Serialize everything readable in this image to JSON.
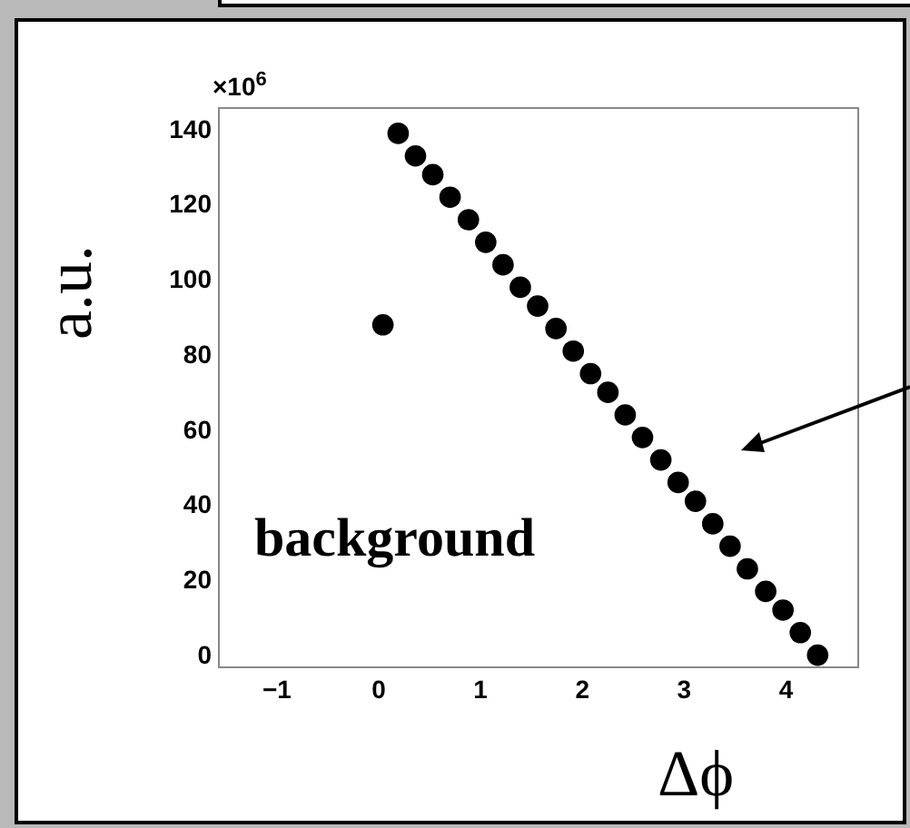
{
  "chart_data": {
    "type": "scatter",
    "xlabel": "Δϕ",
    "ylabel": "a.u.",
    "xlim": [
      -1.57,
      4.71
    ],
    "xticks": [
      -1,
      0,
      1,
      2,
      3,
      4
    ],
    "ylim": [
      -3,
      146
    ],
    "yticks": [
      0,
      20,
      40,
      60,
      80,
      100,
      120,
      140
    ],
    "grid": false,
    "marker": "circle",
    "series": [
      {
        "color": "#000000",
        "x": [
          0.2,
          0.37,
          0.54,
          0.71,
          0.89,
          1.06,
          1.23,
          1.4,
          1.57,
          1.75,
          1.92,
          2.09,
          2.26,
          2.43,
          2.6,
          2.78,
          2.95,
          3.12,
          3.29,
          3.46,
          3.63,
          3.81,
          3.98,
          4.15,
          4.32
        ],
        "values": [
          139,
          133,
          128,
          122,
          116,
          110,
          104,
          98,
          93,
          87,
          81,
          75,
          70,
          64,
          58,
          52,
          46,
          41,
          35,
          29,
          23,
          17,
          12,
          6,
          0
        ]
      },
      {
        "color": "#000000",
        "x": [
          0.05
        ],
        "values": [
          88
        ]
      }
    ],
    "annotations": [
      "×10$^{6}$",
      "background"
    ]
  }
}
